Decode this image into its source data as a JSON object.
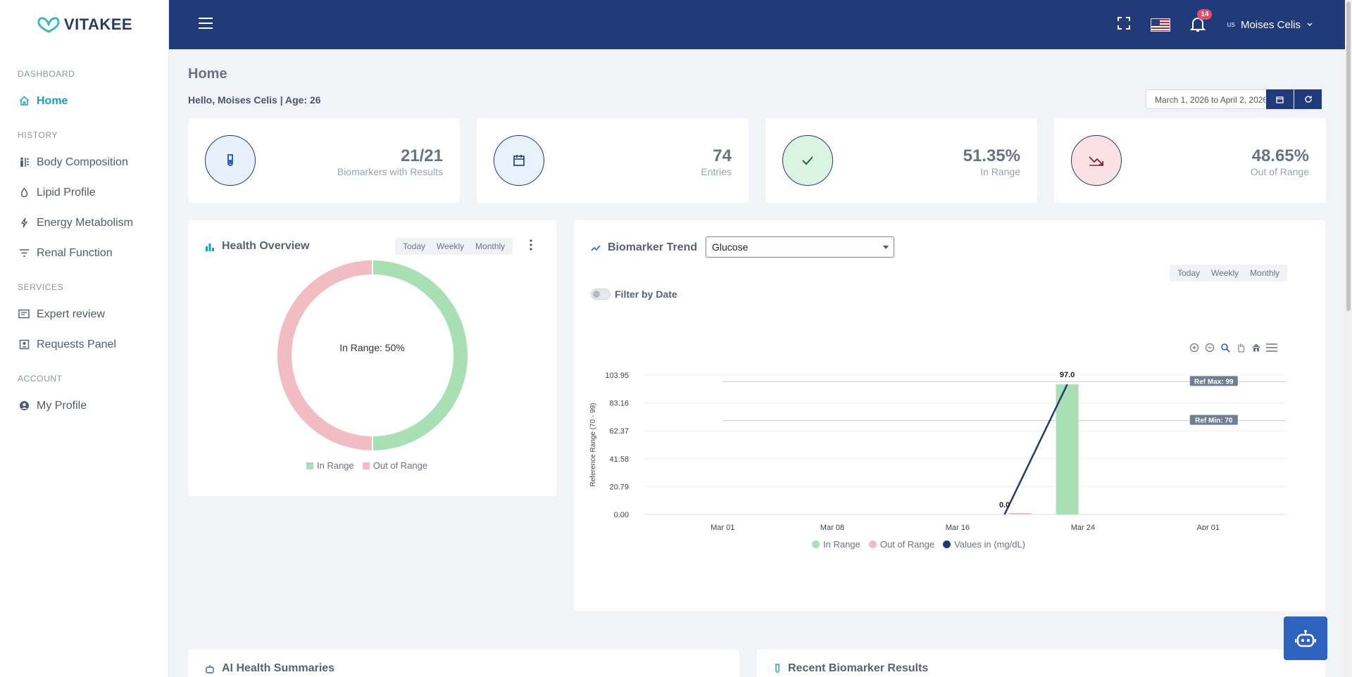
{
  "brand": {
    "name": "VITAKEE"
  },
  "sidebar": {
    "sections": [
      {
        "title": "DASHBOARD",
        "items": [
          {
            "label": "Home",
            "icon": "home-icon",
            "active": true
          }
        ]
      },
      {
        "title": "HISTORY",
        "items": [
          {
            "label": "Body Composition",
            "icon": "body-composition-icon"
          },
          {
            "label": "Lipid Profile",
            "icon": "droplet-icon"
          },
          {
            "label": "Energy Metabolism",
            "icon": "lightning-icon"
          },
          {
            "label": "Renal Function",
            "icon": "filter-icon"
          }
        ]
      },
      {
        "title": "SERVICES",
        "items": [
          {
            "label": "Expert review",
            "icon": "review-icon"
          },
          {
            "label": "Requests Panel",
            "icon": "requests-icon"
          }
        ]
      },
      {
        "title": "ACCOUNT",
        "items": [
          {
            "label": "My Profile",
            "icon": "user-circle-icon"
          }
        ]
      }
    ]
  },
  "topbar": {
    "notification_count": "14",
    "user_img_alt": "us",
    "user_name": "Moises Celis"
  },
  "page": {
    "title": "Home",
    "greeting": "Hello, Moises Celis | Age: 26",
    "date_range": "March 1, 2026 to April 2, 2026"
  },
  "stats": [
    {
      "value": "21/21",
      "label": "Biomarkers with Results",
      "icon": "test-tube-icon",
      "bg": "#e8f0fc",
      "fg": "#2d62c0"
    },
    {
      "value": "74",
      "label": "Entries",
      "icon": "calendar-icon",
      "bg": "#e9f1fb",
      "fg": "#213a79"
    },
    {
      "value": "51.35%",
      "label": "In Range",
      "icon": "check-icon",
      "bg": "#d9f5e1",
      "fg": "#1f6b3a"
    },
    {
      "value": "48.65%",
      "label": "Out of Range",
      "icon": "trend-down-icon",
      "bg": "#fbe0e4",
      "fg": "#8a1f35"
    }
  ],
  "health_overview": {
    "title": "Health Overview",
    "periods": [
      "Today",
      "Weekly",
      "Monthly"
    ],
    "center_label": "In Range: 50%",
    "chart_data": {
      "type": "pie",
      "categories": [
        "In Range",
        "Out of Range"
      ],
      "values": [
        50,
        50
      ],
      "colors": [
        "#a8e0b4",
        "#f2bcc3"
      ],
      "legend": "bottom"
    }
  },
  "biomarker_trend": {
    "title": "Biomarker Trend",
    "selected": "Glucose",
    "periods": [
      "Today",
      "Weekly",
      "Monthly"
    ],
    "filter_label": "Filter by Date",
    "legend": [
      "In Range",
      "Out of Range",
      "Values in (mg/dL)"
    ],
    "legend_colors": [
      "#a8e0b4",
      "#f2bcc3",
      "#223a72"
    ],
    "chart_data": {
      "type": "bar",
      "ylabel": "Reference Range (70 - 99)",
      "ylim": [
        0,
        103.95
      ],
      "yticks": [
        "0.00",
        "20.79",
        "41.58",
        "62.37",
        "83.16",
        "103.95"
      ],
      "xticks": [
        "Mar 01",
        "Mar 08",
        "Mar 16",
        "Mar 24",
        "Apr 01"
      ],
      "x_range": [
        "2026-02-24",
        "2026-04-06"
      ],
      "ref_max": {
        "value": 99,
        "label": "Ref Max: 99"
      },
      "ref_min": {
        "value": 70,
        "label": "Ref Min: 70"
      },
      "series": [
        {
          "name": "In Range",
          "type": "bar",
          "points": [
            {
              "x": "2026-03-23",
              "y": 97.0
            }
          ]
        },
        {
          "name": "Out of Range",
          "type": "bar",
          "points": [
            {
              "x": "2026-03-20",
              "y": 0.0
            }
          ]
        },
        {
          "name": "Values in (mg/dL)",
          "type": "line",
          "points": [
            {
              "x": "2026-03-19",
              "y": 0.0,
              "label": "0.0"
            },
            {
              "x": "2026-03-23",
              "y": 97.0,
              "label": "97.0"
            }
          ]
        }
      ]
    }
  },
  "bottom_cards": [
    {
      "title": "AI Health Summaries",
      "icon": "robot-icon"
    },
    {
      "title": "Recent Biomarker Results",
      "icon": "test-tube-icon"
    }
  ]
}
